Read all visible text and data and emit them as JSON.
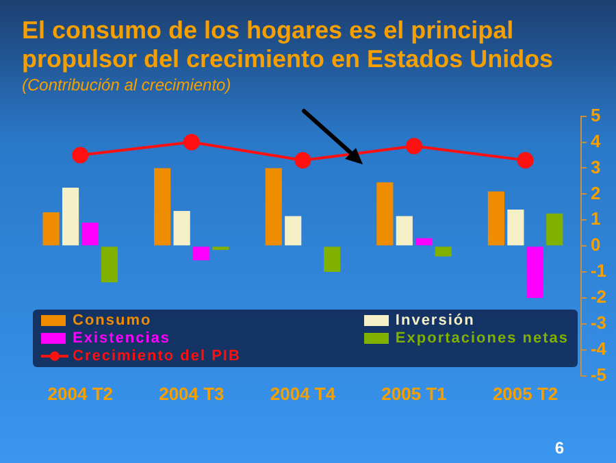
{
  "chart_data": {
    "type": "bar",
    "title": "El consumo de los hogares es el principal propulsor del crecimiento en Estados Unidos",
    "subtitle": "(Contribución al crecimiento)",
    "categories": [
      "2004 T2",
      "2004 T3",
      "2004 T4",
      "2005 T1",
      "2005 T2"
    ],
    "series": [
      {
        "name": "Consumo",
        "color": "#f08c00",
        "values": [
          1.3,
          3.0,
          3.0,
          2.45,
          2.1
        ]
      },
      {
        "name": "Inversión",
        "color": "#f5f0c8",
        "values": [
          2.25,
          1.35,
          1.15,
          1.15,
          1.4
        ]
      },
      {
        "name": "Existencias",
        "color": "#ff00ff",
        "values": [
          0.9,
          -0.55,
          null,
          0.3,
          -2.0
        ]
      },
      {
        "name": "Exportaciones netas",
        "color": "#80b000",
        "values": [
          -1.4,
          -0.15,
          -1.0,
          -0.4,
          1.25
        ]
      },
      {
        "name": "Crecimiento del PIB",
        "color": "#ff1010",
        "type": "line",
        "marker": "circle",
        "values": [
          3.5,
          4.0,
          3.3,
          3.85,
          3.3
        ]
      }
    ],
    "ylim": [
      -5,
      5
    ],
    "yticks": [
      -5,
      -4,
      -3,
      -2,
      -1,
      0,
      1,
      2,
      3,
      4,
      5
    ],
    "grid": false,
    "legend": "bottom left",
    "annotations": [
      "6"
    ]
  }
}
